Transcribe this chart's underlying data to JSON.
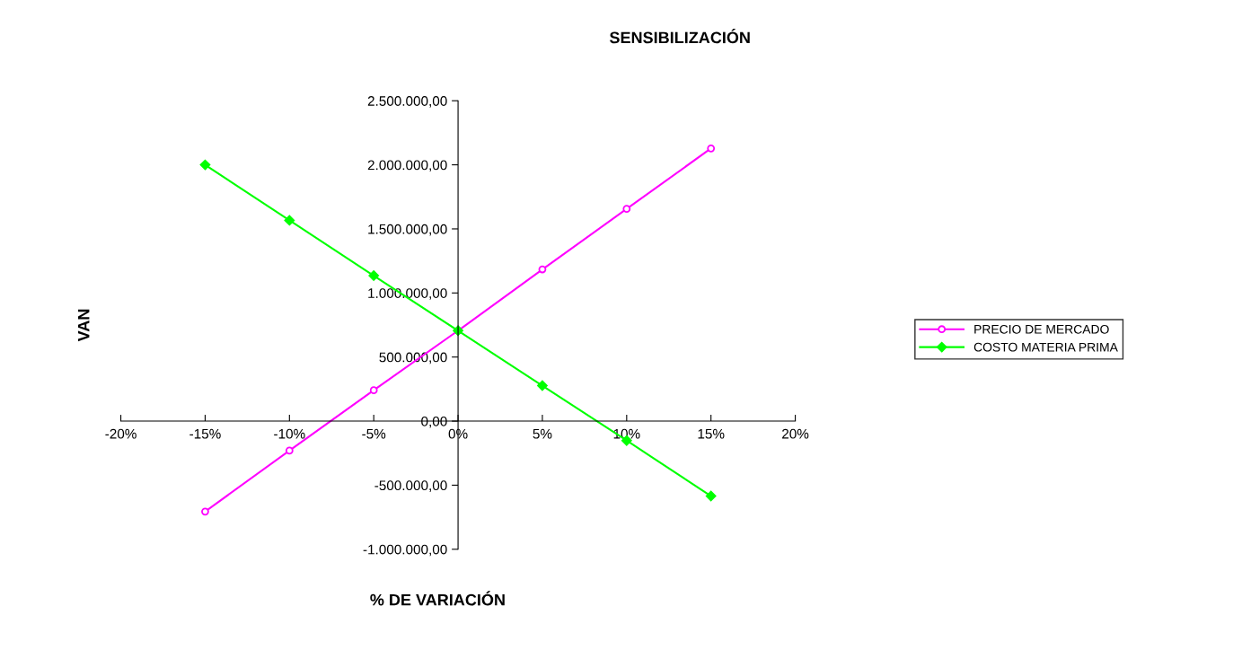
{
  "chart_data": {
    "type": "line",
    "title": "SENSIBILIZACIÓN",
    "xlabel": "% DE VARIACIÓN",
    "ylabel": "VAN",
    "x": [
      -15,
      -10,
      -5,
      0,
      5,
      10,
      15
    ],
    "series": [
      {
        "name": "PRECIO DE MERCADO",
        "color": "#ff00ff",
        "marker": "circle",
        "values": [
          -706000,
          -230000,
          241000,
          706000,
          1184000,
          1656000,
          2128000
        ]
      },
      {
        "name": "COSTO MATERIA PRIMA",
        "color": "#00ff00",
        "marker": "diamond",
        "values": [
          2000000,
          1567000,
          1135000,
          706000,
          277000,
          -152000,
          -585000
        ]
      }
    ],
    "xlim": [
      -20,
      20
    ],
    "xticks": [
      {
        "value": -20,
        "label": "-20%"
      },
      {
        "value": -15,
        "label": "-15%"
      },
      {
        "value": -10,
        "label": "-10%"
      },
      {
        "value": -5,
        "label": "-5%"
      },
      {
        "value": 0,
        "label": "0%"
      },
      {
        "value": 5,
        "label": "5%"
      },
      {
        "value": 10,
        "label": "10%"
      },
      {
        "value": 15,
        "label": "15%"
      },
      {
        "value": 20,
        "label": "20%"
      }
    ],
    "ylim": [
      -1000000,
      2500000
    ],
    "yticks": [
      {
        "value": -1000000,
        "label": "-1.000.000,00"
      },
      {
        "value": -500000,
        "label": "-500.000,00"
      },
      {
        "value": 0,
        "label": "0,00"
      },
      {
        "value": 500000,
        "label": "500.000,00"
      },
      {
        "value": 1000000,
        "label": "1.000.000,00"
      },
      {
        "value": 1500000,
        "label": "1.500.000,00"
      },
      {
        "value": 2000000,
        "label": "2.000.000,00"
      },
      {
        "value": 2500000,
        "label": "2.500.000,00"
      }
    ],
    "grid": false,
    "legend": "right",
    "line_style": "solid"
  }
}
